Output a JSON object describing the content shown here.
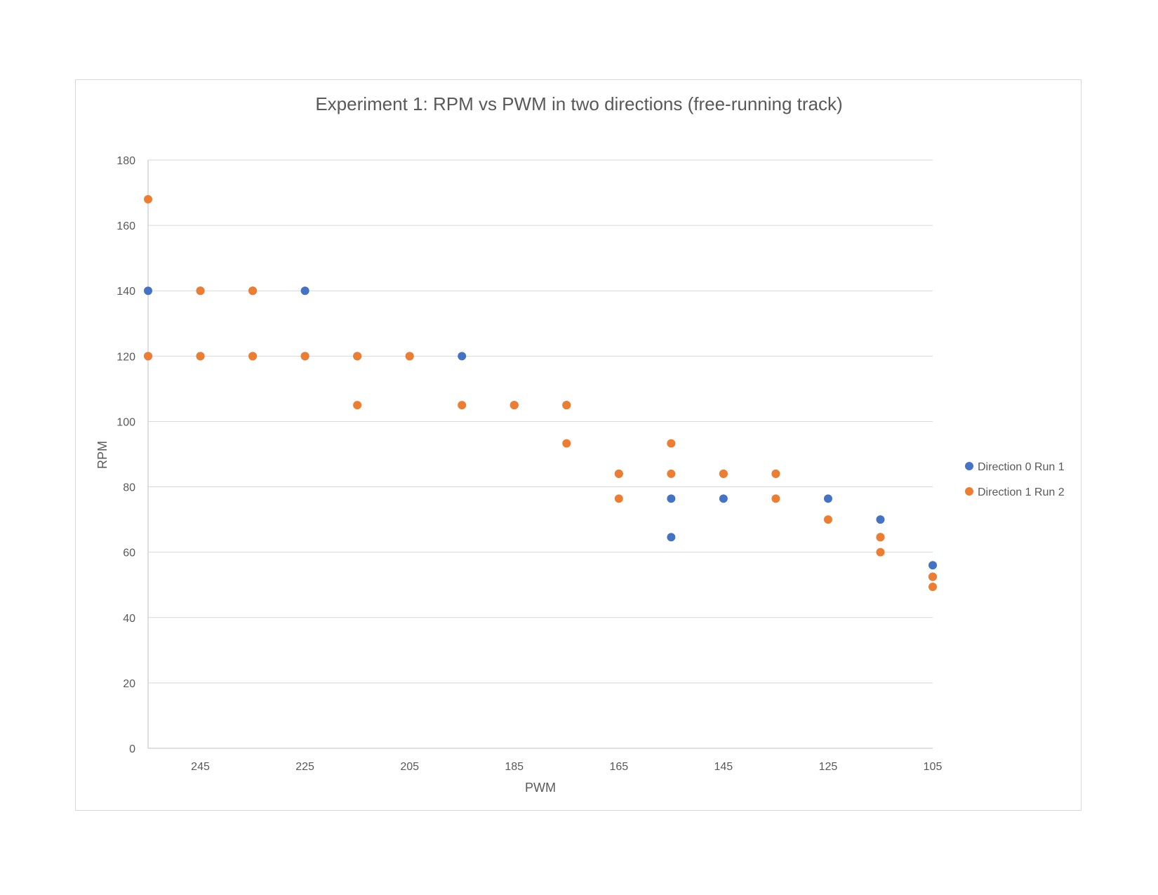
{
  "chart_data": {
    "type": "scatter",
    "title": "Experiment 1: RPM vs PWM in two directions (free-running track)",
    "xlabel": "PWM",
    "ylabel": "RPM",
    "xlim": [
      255,
      105
    ],
    "x_reversed": true,
    "ylim": [
      0,
      180
    ],
    "xticks": [
      245,
      225,
      205,
      185,
      165,
      145,
      125,
      105
    ],
    "yticks": [
      0,
      20,
      40,
      60,
      80,
      100,
      120,
      140,
      160,
      180
    ],
    "grid": "horizontal",
    "legend": "right",
    "series": [
      {
        "name": "Direction 0 Run 1",
        "color": "#4472C4",
        "points": [
          [
            255,
            140
          ],
          [
            255,
            120
          ],
          [
            245,
            140
          ],
          [
            245,
            120
          ],
          [
            235,
            140
          ],
          [
            235,
            120
          ],
          [
            225,
            140
          ],
          [
            225,
            120
          ],
          [
            215,
            120
          ],
          [
            205,
            120
          ],
          [
            195,
            120
          ],
          [
            185,
            105
          ],
          [
            175,
            105
          ],
          [
            165,
            84
          ],
          [
            155,
            76.4
          ],
          [
            155,
            64.6
          ],
          [
            145,
            84
          ],
          [
            145,
            76.4
          ],
          [
            135,
            84
          ],
          [
            125,
            76.4
          ],
          [
            115,
            70
          ],
          [
            115,
            64.6
          ],
          [
            105,
            56
          ],
          [
            105,
            52.5
          ]
        ]
      },
      {
        "name": "Direction 1 Run 2",
        "color": "#ED7D31",
        "points": [
          [
            255,
            168
          ],
          [
            255,
            120
          ],
          [
            245,
            140
          ],
          [
            245,
            120
          ],
          [
            235,
            140
          ],
          [
            235,
            120
          ],
          [
            225,
            120
          ],
          [
            215,
            120
          ],
          [
            215,
            105
          ],
          [
            205,
            120
          ],
          [
            195,
            105
          ],
          [
            185,
            105
          ],
          [
            175,
            105
          ],
          [
            175,
            93.3
          ],
          [
            165,
            84
          ],
          [
            165,
            76.4
          ],
          [
            155,
            93.3
          ],
          [
            155,
            84
          ],
          [
            145,
            84
          ],
          [
            135,
            84
          ],
          [
            135,
            76.4
          ],
          [
            125,
            70
          ],
          [
            115,
            64.6
          ],
          [
            115,
            60
          ],
          [
            105,
            52.5
          ],
          [
            105,
            49.4
          ]
        ]
      }
    ]
  }
}
